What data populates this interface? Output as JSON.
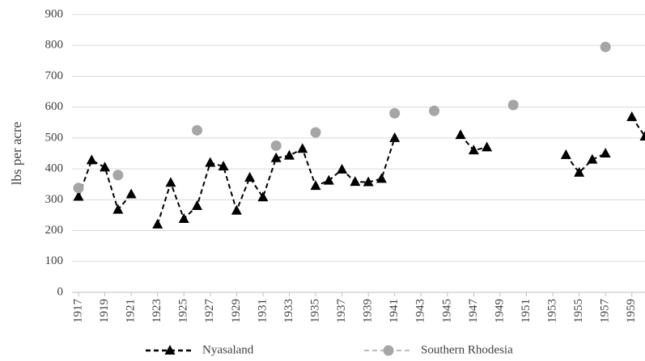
{
  "chart_data": {
    "type": "line",
    "y_label": "lbs per acre",
    "x": [
      1917,
      1918,
      1919,
      1920,
      1921,
      1922,
      1923,
      1924,
      1925,
      1926,
      1927,
      1928,
      1929,
      1930,
      1931,
      1932,
      1933,
      1934,
      1935,
      1936,
      1937,
      1938,
      1939,
      1940,
      1941,
      1942,
      1943,
      1944,
      1945,
      1946,
      1947,
      1948,
      1949,
      1950,
      1951,
      1952,
      1953,
      1954,
      1955,
      1956,
      1957,
      1958,
      1959,
      1960
    ],
    "series": [
      {
        "name": "Nyasaland",
        "color": "#000000",
        "marker": "triangle",
        "line": "dashed",
        "values": [
          310,
          428,
          405,
          268,
          318,
          null,
          220,
          355,
          238,
          280,
          420,
          408,
          265,
          372,
          308,
          435,
          443,
          465,
          345,
          362,
          398,
          358,
          357,
          368,
          500,
          null,
          null,
          null,
          null,
          510,
          460,
          470,
          null,
          null,
          null,
          null,
          null,
          445,
          388,
          430,
          450,
          null,
          568,
          505
        ]
      },
      {
        "name": "Southern Rhodesia",
        "color": "#a6a6a6",
        "marker": "circle",
        "line": "dashed",
        "values": [
          338,
          null,
          null,
          380,
          null,
          null,
          null,
          null,
          null,
          525,
          null,
          null,
          null,
          null,
          null,
          475,
          null,
          null,
          518,
          null,
          null,
          null,
          null,
          null,
          580,
          null,
          null,
          588,
          null,
          null,
          null,
          null,
          null,
          607,
          null,
          null,
          null,
          null,
          null,
          null,
          795,
          null,
          null,
          null
        ]
      }
    ],
    "xlim": [
      1917,
      1960
    ],
    "xticks": [
      1917,
      1919,
      1921,
      1923,
      1925,
      1927,
      1929,
      1931,
      1933,
      1935,
      1937,
      1939,
      1941,
      1943,
      1945,
      1947,
      1949,
      1951,
      1953,
      1955,
      1957,
      1959
    ],
    "ylim": [
      0,
      900
    ],
    "yticks": [
      0,
      100,
      200,
      300,
      400,
      500,
      600,
      700,
      800,
      900
    ],
    "grid": true,
    "legend": "bottom"
  }
}
